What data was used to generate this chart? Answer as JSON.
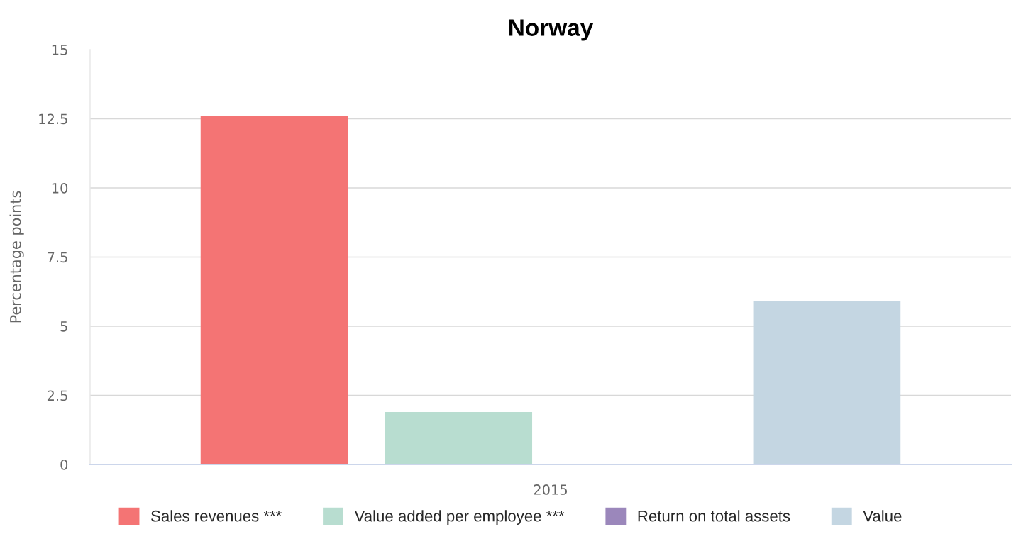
{
  "chart_data": {
    "type": "bar",
    "title": "Norway",
    "ylabel": "Percentage points",
    "categories": [
      "2015"
    ],
    "series": [
      {
        "name": "Sales revenues ***",
        "color": "#f47474",
        "values": [
          12.6
        ]
      },
      {
        "name": "Value added per employee ***",
        "color": "#b8ddd0",
        "values": [
          1.9
        ]
      },
      {
        "name": "Return on total assets",
        "color": "#9b87bb",
        "values": [
          null
        ]
      },
      {
        "name": "Value",
        "color": "#c4d6e2",
        "values": [
          5.9
        ]
      }
    ],
    "ylim": [
      0,
      15
    ],
    "yticks": [
      0,
      2.5,
      5,
      7.5,
      10,
      12.5,
      15
    ],
    "grid": "y",
    "legend": "bottom"
  }
}
